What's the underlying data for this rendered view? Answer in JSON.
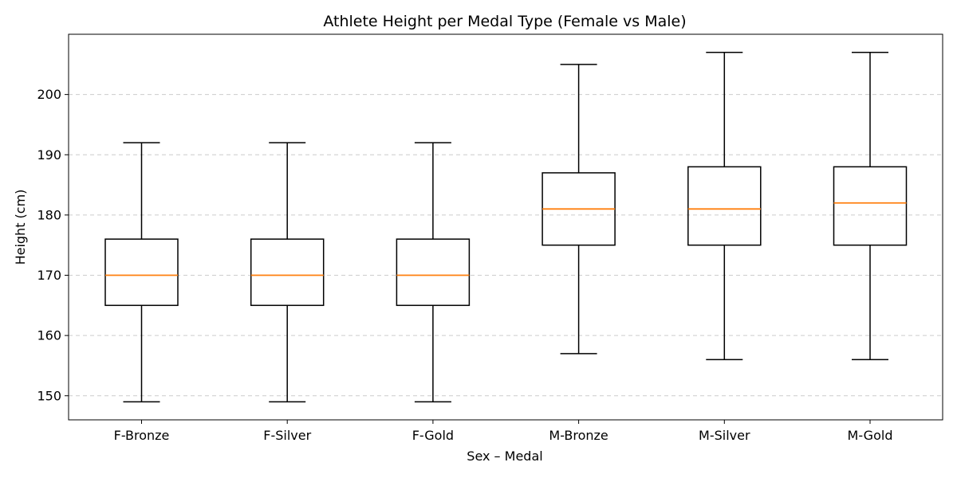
{
  "chart_data": {
    "type": "box",
    "title": "Athlete Height per Medal Type (Female vs Male)",
    "xlabel": "Sex – Medal",
    "ylabel": "Height (cm)",
    "ylim": [
      146,
      210
    ],
    "yticks": [
      150,
      160,
      170,
      180,
      190,
      200
    ],
    "grid": "y-dashed",
    "colors": {
      "box": "#000000",
      "median": "#ff7f0e",
      "grid": "#cccccc"
    },
    "categories": [
      "F-Bronze",
      "F-Silver",
      "F-Gold",
      "M-Bronze",
      "M-Silver",
      "M-Gold"
    ],
    "boxes": [
      {
        "whisker_low": 149,
        "q1": 165,
        "median": 170,
        "q3": 176,
        "whisker_high": 192
      },
      {
        "whisker_low": 149,
        "q1": 165,
        "median": 170,
        "q3": 176,
        "whisker_high": 192
      },
      {
        "whisker_low": 149,
        "q1": 165,
        "median": 170,
        "q3": 176,
        "whisker_high": 192
      },
      {
        "whisker_low": 157,
        "q1": 175,
        "median": 181,
        "q3": 187,
        "whisker_high": 205
      },
      {
        "whisker_low": 156,
        "q1": 175,
        "median": 181,
        "q3": 188,
        "whisker_high": 207
      },
      {
        "whisker_low": 156,
        "q1": 175,
        "median": 182,
        "q3": 188,
        "whisker_high": 207
      }
    ]
  }
}
